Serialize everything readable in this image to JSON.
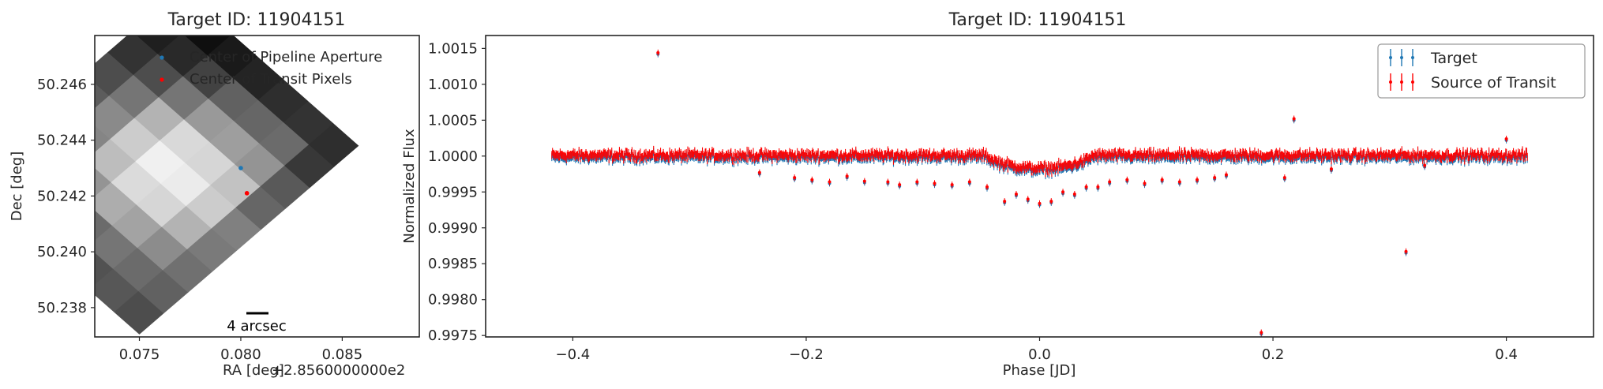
{
  "chart_data": [
    {
      "type": "heatmap",
      "title": "Target ID: 11904151",
      "xlabel": "RA [deg]",
      "ylabel": "Dec [deg]",
      "x_offset_label": "+2.8560000000e2",
      "xlim": [
        0.0728,
        0.0888
      ],
      "ylim": [
        50.23695,
        50.24775
      ],
      "xticks": [
        0.075,
        0.08,
        0.085
      ],
      "xtick_labels": [
        "0.075",
        "0.080",
        "0.085"
      ],
      "yticks": [
        50.238,
        50.24,
        50.242,
        50.244,
        50.246
      ],
      "ytick_labels": [
        "50.238",
        "50.240",
        "50.242",
        "50.244",
        "50.246"
      ],
      "grid": false,
      "legend": "upper-right",
      "scale_bar_label": "4 arcsec",
      "pixel_grid": {
        "origin": [
          0.075,
          50.23705
        ],
        "col_step": [
          0.0012,
          0.00075
        ],
        "row_step": [
          -0.00125,
          0.0008
        ],
        "values": [
          [
            0.3,
            0.38,
            0.44,
            0.48,
            0.5,
            0.4,
            0.35,
            0.22,
            0.18
          ],
          [
            0.34,
            0.42,
            0.55,
            0.7,
            0.8,
            0.76,
            0.58,
            0.42,
            0.2
          ],
          [
            0.32,
            0.46,
            0.64,
            0.84,
            0.92,
            0.84,
            0.62,
            0.4,
            0.18
          ],
          [
            0.28,
            0.42,
            0.68,
            0.86,
            0.94,
            0.85,
            0.6,
            0.38,
            0.14
          ],
          [
            0.22,
            0.36,
            0.58,
            0.74,
            0.8,
            0.7,
            0.46,
            0.26,
            0.1
          ],
          [
            0.18,
            0.28,
            0.42,
            0.52,
            0.54,
            0.46,
            0.3,
            0.16,
            0.06
          ],
          [
            0.14,
            0.22,
            0.3,
            0.34,
            0.36,
            0.3,
            0.2,
            0.12,
            0.04
          ]
        ]
      },
      "series": [
        {
          "name": "Center of Pipeline Aperture",
          "color": "#1f77b4",
          "points": [
            [
              0.08,
              50.243
            ]
          ]
        },
        {
          "name": "Center of Transit Pixels",
          "color": "#ff0000",
          "points": [
            [
              0.0803,
              50.2421
            ]
          ]
        }
      ]
    },
    {
      "type": "scatter",
      "title": "Target ID: 11904151",
      "xlabel": "Phase [JD]",
      "ylabel": "Normalized Flux",
      "xlim": [
        -0.4747,
        0.4747
      ],
      "ylim": [
        0.99748,
        1.00168
      ],
      "xticks": [
        -0.4,
        -0.2,
        0.0,
        0.2,
        0.4
      ],
      "xtick_labels": [
        "−0.4",
        "−0.2",
        "0.0",
        "0.2",
        "0.4"
      ],
      "yticks": [
        0.9975,
        0.998,
        0.9985,
        0.999,
        0.9995,
        1.0,
        1.0005,
        1.001,
        1.0015
      ],
      "ytick_labels": [
        "0.9975",
        "0.9980",
        "0.9985",
        "0.9990",
        "0.9995",
        "1.0000",
        "1.0005",
        "1.0010",
        "1.0015"
      ],
      "grid": false,
      "legend": "upper-right",
      "band": {
        "phase_range": [
          -0.418,
          0.418
        ],
        "baseline_flux": 1.0,
        "scatter": 5e-05,
        "transit_center": 0.0,
        "transit_half_width": 0.045,
        "transit_depth": 0.00018
      },
      "outliers_phase": [
        -0.327,
        -0.24,
        -0.21,
        -0.195,
        -0.18,
        -0.165,
        -0.15,
        -0.13,
        -0.12,
        -0.105,
        -0.09,
        -0.075,
        -0.06,
        -0.045,
        -0.03,
        -0.02,
        -0.01,
        0.0,
        0.01,
        0.02,
        0.03,
        0.04,
        0.05,
        0.06,
        0.075,
        0.09,
        0.105,
        0.12,
        0.135,
        0.15,
        0.16,
        0.19,
        0.191,
        0.21,
        0.218,
        0.25,
        0.314,
        0.33,
        0.4
      ],
      "outliers_flux": [
        1.00142,
        0.99975,
        0.99968,
        0.99965,
        0.99962,
        0.9997,
        0.99963,
        0.99962,
        0.99958,
        0.99962,
        0.9996,
        0.99958,
        0.99962,
        0.99955,
        0.99935,
        0.99945,
        0.99938,
        0.99932,
        0.99935,
        0.99948,
        0.99945,
        0.99955,
        0.99955,
        0.99962,
        0.99965,
        0.9996,
        0.99965,
        0.99962,
        0.99965,
        0.99968,
        0.99972,
        0.99752,
        0.9971,
        0.99968,
        1.0005,
        0.9998,
        0.99865,
        0.99985,
        1.00022
      ],
      "series": [
        {
          "name": "Target",
          "color": "#1f77b4"
        },
        {
          "name": "Source of Transit",
          "color": "#ff0000"
        }
      ]
    }
  ]
}
